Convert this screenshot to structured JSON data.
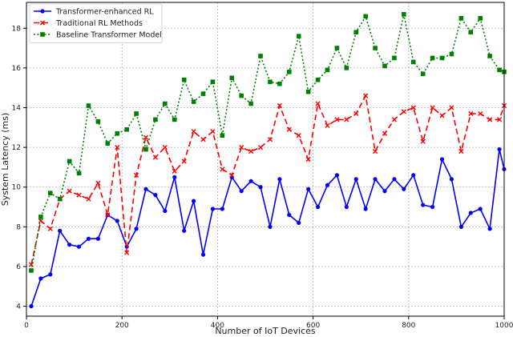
{
  "chart_data": {
    "type": "line",
    "xlabel": "Number of IoT Devices",
    "ylabel": "System Latency (ms)",
    "xlim": [
      0,
      1000
    ],
    "ylim": [
      3.5,
      19.3
    ],
    "xticks": [
      0,
      200,
      400,
      600,
      800,
      1000
    ],
    "yticks": [
      4,
      6,
      8,
      10,
      12,
      14,
      16,
      18
    ],
    "grid": true,
    "grid_style": "dotted",
    "legend_position": "top-left",
    "x": [
      10,
      30,
      50,
      70,
      90,
      110,
      130,
      150,
      170,
      190,
      210,
      230,
      250,
      270,
      290,
      310,
      330,
      350,
      370,
      390,
      410,
      430,
      450,
      470,
      490,
      510,
      530,
      550,
      570,
      590,
      610,
      630,
      650,
      670,
      690,
      710,
      730,
      750,
      770,
      790,
      810,
      830,
      850,
      870,
      890,
      910,
      930,
      950,
      970,
      990,
      1000
    ],
    "series": [
      {
        "name": "Transformer-enhanced RL",
        "color": "#0000ff",
        "line_style": "solid",
        "marker": "circle",
        "values": [
          4.0,
          5.4,
          5.6,
          7.8,
          7.1,
          7.0,
          7.4,
          7.4,
          8.6,
          8.3,
          7.0,
          7.9,
          9.9,
          9.6,
          8.8,
          10.5,
          7.8,
          9.3,
          6.6,
          8.9,
          8.9,
          10.5,
          9.8,
          10.3,
          10.0,
          8.0,
          10.4,
          8.6,
          8.2,
          9.9,
          9.0,
          10.1,
          10.6,
          9.0,
          10.4,
          8.9,
          10.4,
          9.8,
          10.4,
          9.9,
          10.6,
          9.1,
          9.0,
          11.4,
          10.4,
          8.0,
          8.7,
          8.9,
          7.9,
          11.9,
          10.9
        ]
      },
      {
        "name": "Traditional RL Methods",
        "color": "#ff0000",
        "line_style": "dashed",
        "marker": "x",
        "values": [
          6.1,
          8.3,
          7.9,
          9.4,
          9.8,
          9.6,
          9.4,
          10.2,
          8.6,
          12.0,
          6.7,
          10.6,
          12.5,
          11.5,
          12.0,
          10.8,
          11.3,
          12.8,
          12.4,
          12.8,
          10.9,
          10.6,
          12.0,
          11.8,
          12.0,
          12.4,
          14.1,
          12.9,
          12.6,
          11.4,
          14.2,
          13.1,
          13.4,
          13.4,
          13.7,
          14.6,
          11.8,
          12.7,
          13.4,
          13.8,
          14.0,
          12.3,
          14.0,
          13.6,
          14.0,
          11.8,
          13.7,
          13.7,
          13.4,
          13.4,
          14.1
        ]
      },
      {
        "name": "Baseline Transformer Model",
        "color": "#008000",
        "line_style": "dotted",
        "marker": "square",
        "values": [
          5.8,
          8.5,
          9.7,
          9.4,
          11.3,
          10.7,
          14.1,
          13.3,
          12.2,
          12.7,
          12.9,
          13.7,
          11.9,
          13.4,
          14.2,
          13.4,
          15.4,
          14.3,
          14.7,
          15.3,
          12.6,
          15.5,
          14.6,
          14.2,
          16.6,
          15.3,
          15.2,
          15.8,
          17.6,
          14.8,
          15.4,
          15.9,
          17.0,
          16.0,
          17.8,
          18.6,
          17.0,
          16.1,
          16.5,
          18.7,
          16.3,
          15.7,
          16.5,
          16.5,
          16.7,
          18.5,
          17.8,
          18.5,
          16.6,
          15.9,
          15.8
        ]
      }
    ]
  }
}
